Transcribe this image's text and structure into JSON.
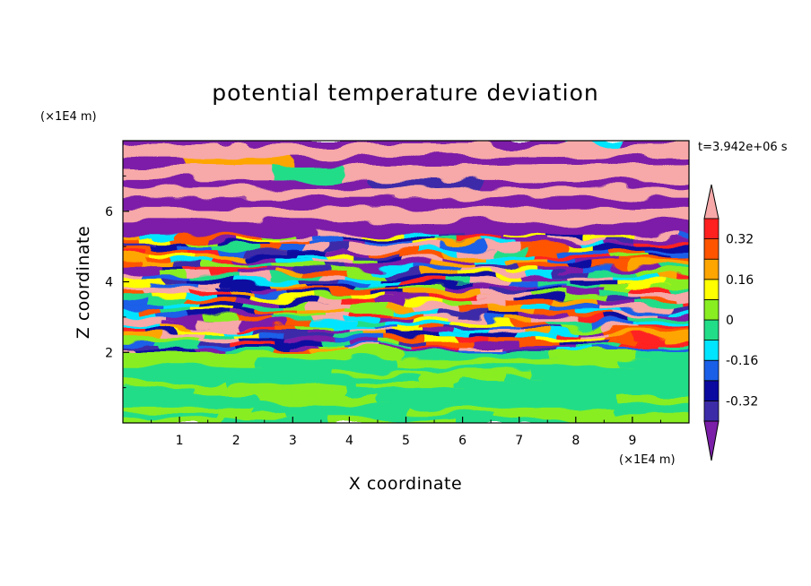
{
  "chart_data": {
    "type": "heatmap",
    "title": "potential temperature deviation",
    "xlabel": "X coordinate",
    "ylabel": "Z coordinate",
    "x_unit": "(×1E4 m)",
    "y_unit": "(×1E4 m)",
    "time_label": "t=3.942e+06 s",
    "xlim": [
      0,
      10
    ],
    "ylim": [
      0,
      8
    ],
    "x_ticks": [
      "1",
      "2",
      "3",
      "4",
      "5",
      "6",
      "7",
      "8",
      "9"
    ],
    "y_ticks": [
      "2",
      "4",
      "6"
    ],
    "grid": false,
    "colorbar": {
      "placement": "right",
      "extend": "both",
      "levels": [
        -0.4,
        -0.32,
        -0.24,
        -0.16,
        -0.08,
        0,
        0.08,
        0.16,
        0.24,
        0.32,
        0.4
      ],
      "colors": [
        "#7b1fa8",
        "#3c2ca8",
        "#0a0aa0",
        "#1a5fe8",
        "#00e5ff",
        "#22dd88",
        "#88ee22",
        "#ffff00",
        "#ffa500",
        "#ff5500",
        "#ff2020",
        "#f7a8a8"
      ],
      "tick_labels": [
        "0.32",
        "0.16",
        "0",
        "-0.16",
        "-0.32"
      ],
      "tick_values": [
        0.32,
        0.16,
        0,
        -0.16,
        -0.32
      ]
    },
    "field_summary": [
      {
        "z_range": [
          0,
          1.95
        ],
        "description": "values mostly between -0.08 and 0.08, with slight positive patches"
      },
      {
        "z_range": [
          1.95,
          5.4
        ],
        "description": "strongly layered alternating positive and negative anomalies spanning the full color range"
      },
      {
        "z_range": [
          5.4,
          8
        ],
        "description": "broad alternating bands of values above 0.40 and below -0.40"
      }
    ]
  }
}
